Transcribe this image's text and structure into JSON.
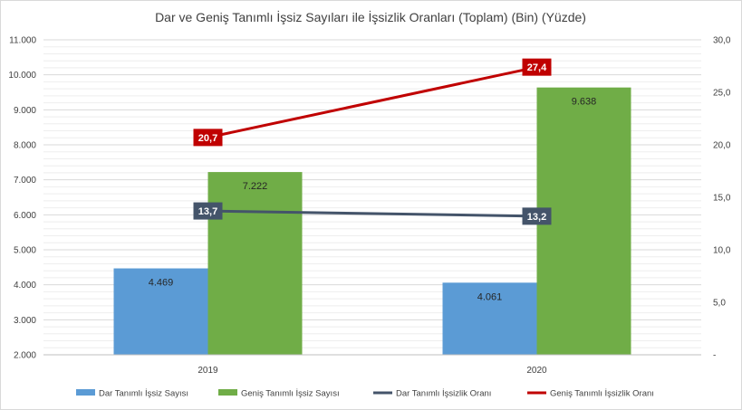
{
  "chart_data": {
    "type": "bar",
    "title": "Dar ve Geniş Tanımlı İşsiz Sayıları ile İşsizlik Oranları (Toplam) (Bin) (Yüzde)",
    "categories": [
      "2019",
      "2020"
    ],
    "series": [
      {
        "name": "Dar Tanımlı İşsiz Sayısı",
        "type": "bar",
        "axis": "left",
        "values": [
          4469,
          4061
        ],
        "labels": [
          "4.469",
          "4.061"
        ],
        "color": "#5b9bd5"
      },
      {
        "name": "Geniş Tanımlı İşsiz Sayısı",
        "type": "bar",
        "axis": "left",
        "values": [
          7222,
          9638
        ],
        "labels": [
          "7.222",
          "9.638"
        ],
        "color": "#70ad47"
      },
      {
        "name": "Dar Tanımlı İşsizlik Oranı",
        "type": "line",
        "axis": "right",
        "values": [
          13.7,
          13.2
        ],
        "labels": [
          "13,7",
          "13,2"
        ],
        "color": "#44546a"
      },
      {
        "name": "Geniş Tanımlı İşsizlik Oranı",
        "type": "line",
        "axis": "right",
        "values": [
          20.7,
          27.4
        ],
        "labels": [
          "20,7",
          "27,4"
        ],
        "color": "#c00000"
      }
    ],
    "left_axis": {
      "min": 2000,
      "max": 11000,
      "step": 1000,
      "tick_labels": [
        "2.000",
        "3.000",
        "4.000",
        "5.000",
        "6.000",
        "7.000",
        "8.000",
        "9.000",
        "10.000",
        "11.000"
      ]
    },
    "right_axis": {
      "min": 0,
      "max": 30,
      "step": 5,
      "tick_labels": [
        "-",
        "5,0",
        "10,0",
        "15,0",
        "20,0",
        "25,0",
        "30,0"
      ]
    },
    "grid": true,
    "legend_position": "bottom"
  }
}
